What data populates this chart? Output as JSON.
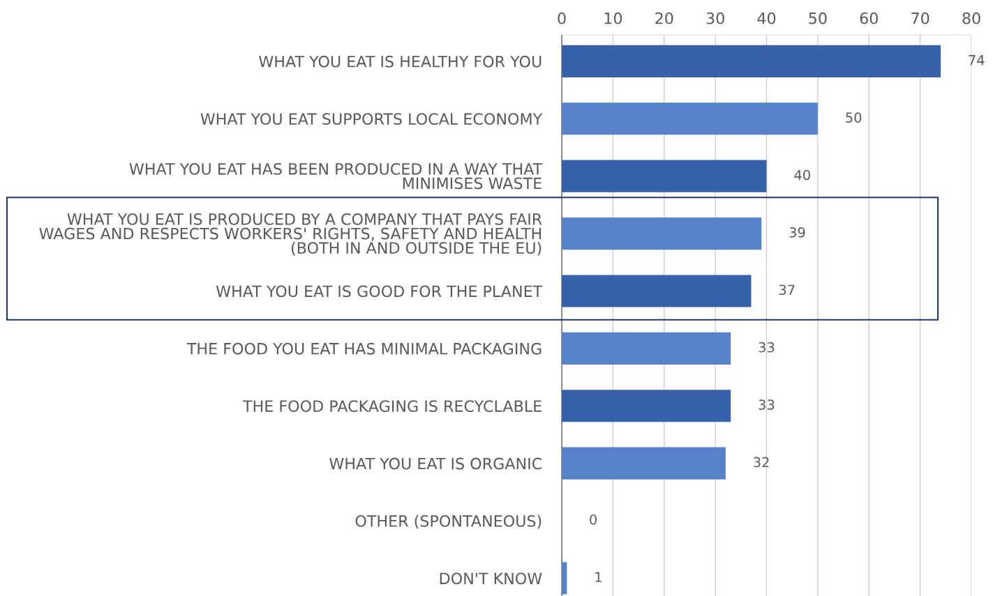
{
  "chart_data": {
    "type": "bar",
    "orientation": "horizontal",
    "categories": [
      "WHAT YOU EAT IS HEALTHY FOR YOU",
      "WHAT YOU EAT SUPPORTS LOCAL ECONOMY",
      "WHAT YOU EAT HAS BEEN PRODUCED IN A WAY THAT\nMINIMISES WASTE",
      "WHAT YOU EAT IS PRODUCED BY A COMPANY THAT PAYS FAIR\nWAGES AND RESPECTS WORKERS' RIGHTS, SAFETY AND HEALTH\n(BOTH IN AND OUTSIDE THE EU)",
      "WHAT YOU EAT IS GOOD FOR THE PLANET",
      "THE FOOD YOU EAT HAS MINIMAL PACKAGING",
      "THE FOOD PACKAGING IS RECYCLABLE",
      "WHAT YOU EAT IS ORGANIC",
      "OTHER (SPONTANEOUS)",
      "DON'T KNOW"
    ],
    "values": [
      74,
      50,
      40,
      39,
      37,
      33,
      33,
      32,
      0,
      1
    ],
    "colors": [
      "#3762a9",
      "#5682c9",
      "#3762a9",
      "#5682c9",
      "#3762a9",
      "#5682c9",
      "#3762a9",
      "#5682c9",
      "#3762a9",
      "#5682c9"
    ],
    "xlim": [
      0,
      80
    ],
    "xticks": [
      0,
      10,
      20,
      30,
      40,
      50,
      60,
      70,
      80
    ],
    "grid": "x",
    "data_labels": true
  }
}
